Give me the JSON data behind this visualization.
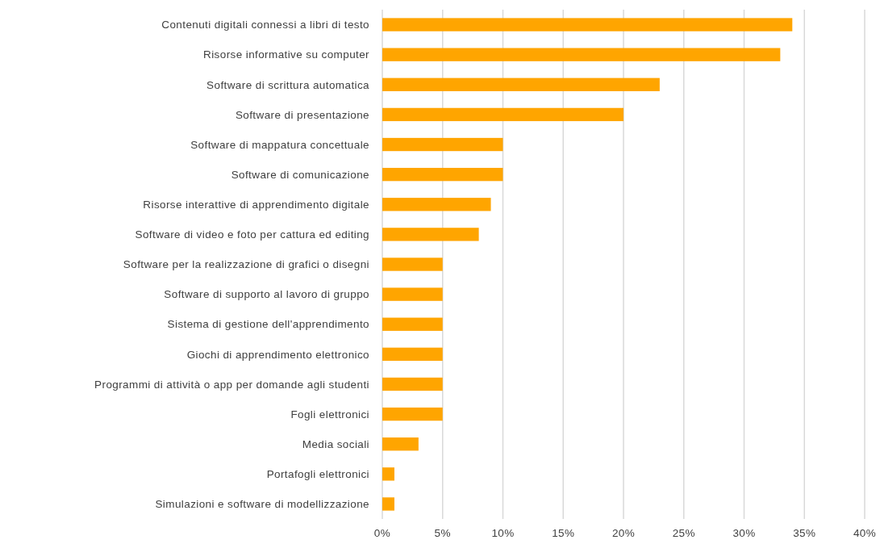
{
  "chart_data": {
    "type": "bar",
    "orientation": "horizontal",
    "categories": [
      "Contenuti digitali connessi a libri di testo",
      "Risorse informative su computer",
      "Software di scrittura automatica",
      "Software di presentazione",
      "Software di mappatura concettuale",
      "Software di comunicazione",
      "Risorse interattive di apprendimento digitale",
      "Software di video e foto per cattura ed editing",
      "Software per la realizzazione di grafici o disegni",
      "Software di supporto al lavoro di gruppo",
      "Sistema di gestione dell'apprendimento",
      "Giochi di apprendimento elettronico",
      "Programmi di attività o app per domande agli studenti",
      "Fogli elettronici",
      "Media sociali",
      "Portafogli elettronici",
      "Simulazioni e software di modellizzazione"
    ],
    "values": [
      34,
      33,
      23,
      20,
      10,
      10,
      9,
      8,
      5,
      5,
      5,
      5,
      5,
      5,
      3,
      1,
      1
    ],
    "color": "#ffa500",
    "xlim": [
      0,
      40
    ],
    "xticks": [
      {
        "value": 0,
        "label": "0%"
      },
      {
        "value": 5,
        "label": "5%"
      },
      {
        "value": 10,
        "label": "10%"
      },
      {
        "value": 15,
        "label": "15%"
      },
      {
        "value": 20,
        "label": "20%"
      },
      {
        "value": 25,
        "label": "25%"
      },
      {
        "value": 30,
        "label": "30%"
      },
      {
        "value": 35,
        "label": "35%"
      },
      {
        "value": 40,
        "label": "40%"
      }
    ],
    "grid": "x"
  }
}
